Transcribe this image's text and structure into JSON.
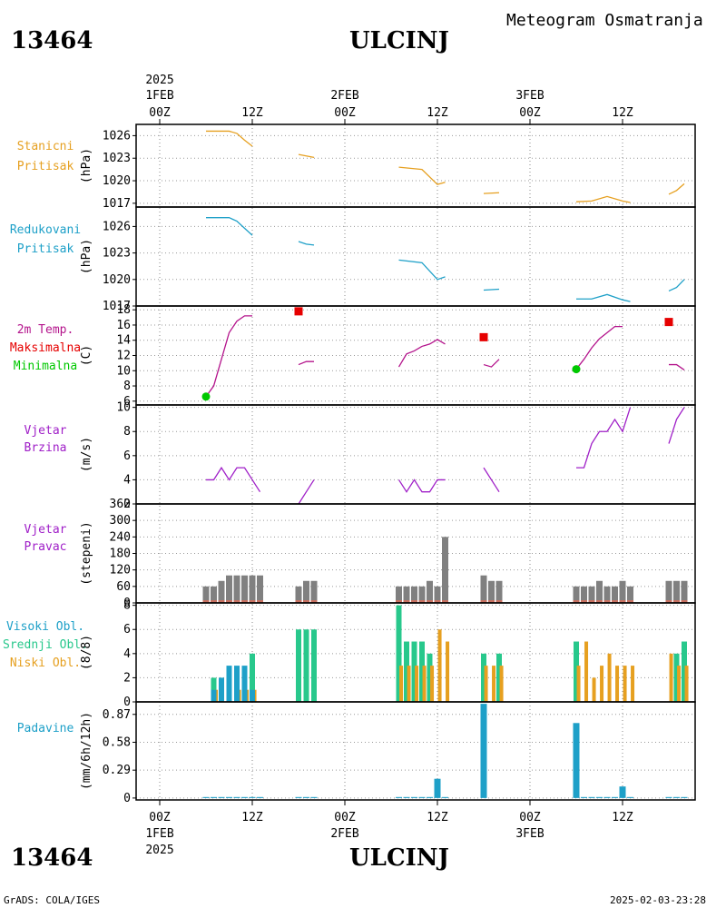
{
  "header": {
    "station_id": "13464",
    "station_name": "ULCINJ",
    "product": "Meteogram Osmatranja"
  },
  "footer": {
    "credit": "GrADS: COLA/IGES",
    "timestamp": "2025-02-03-23:28"
  },
  "time_axis": {
    "year": "2025",
    "ticks": [
      {
        "h": 0,
        "time": "00Z",
        "date": "1FEB"
      },
      {
        "h": 12,
        "time": "12Z",
        "date": ""
      },
      {
        "h": 24,
        "time": "00Z",
        "date": "2FEB"
      },
      {
        "h": 36,
        "time": "12Z",
        "date": ""
      },
      {
        "h": 48,
        "time": "00Z",
        "date": "3FEB"
      },
      {
        "h": 60,
        "time": "12Z",
        "date": ""
      }
    ]
  },
  "panels": {
    "stanicni": {
      "labels": [
        "Stanicni",
        "Pritisak"
      ],
      "unit": "(hPa)",
      "color": "#e6a020"
    },
    "redukovani": {
      "labels": [
        "Redukovani",
        "Pritisak"
      ],
      "unit": "(hPa)",
      "color": "#1ea0c8"
    },
    "temp": {
      "labels": [
        "2m Temp.",
        "Maksimalna",
        "Minimalna"
      ],
      "colors": [
        "#b4148c",
        "#e60000",
        "#00c800"
      ],
      "unit": "(C)"
    },
    "vjetar_brzina": {
      "labels": [
        "Vjetar",
        "Brzina"
      ],
      "unit": "(m/s)",
      "color": "#a020c8"
    },
    "vjetar_pravac": {
      "labels": [
        "Vjetar",
        "Pravac"
      ],
      "unit": "(stepeni)",
      "color": "#a020c8"
    },
    "oblaci": {
      "labels": [
        "Visoki Obl.",
        "Srednji Obl.",
        "Niski Obl."
      ],
      "colors": [
        "#1ea0c8",
        "#28c88c",
        "#e6a020"
      ],
      "unit": "(8/8)"
    },
    "padavine": {
      "labels": [
        "Padavine"
      ],
      "unit": "(mm/6h/12h)",
      "color": "#1ea0c8"
    }
  },
  "chart_data": [
    {
      "type": "line",
      "title": "Stanicni Pritisak",
      "ylabel": "(hPa)",
      "ylim": [
        1016.5,
        1027.5
      ],
      "yticks": [
        1017,
        1020,
        1023,
        1026
      ],
      "segments": [
        {
          "x": [
            6,
            9,
            10,
            11,
            12
          ],
          "y": [
            1026.6,
            1026.6,
            1026.3,
            1025.4,
            1024.6
          ]
        },
        {
          "x": [
            18,
            20
          ],
          "y": [
            1023.5,
            1023.1
          ]
        },
        {
          "x": [
            31,
            34,
            36,
            37
          ],
          "y": [
            1021.8,
            1021.5,
            1019.5,
            1019.8
          ]
        },
        {
          "x": [
            42,
            44
          ],
          "y": [
            1018.3,
            1018.4
          ]
        },
        {
          "x": [
            54,
            56,
            58,
            60,
            61
          ],
          "y": [
            1017.2,
            1017.3,
            1017.9,
            1017.3,
            1017.1
          ]
        },
        {
          "x": [
            66,
            67,
            68
          ],
          "y": [
            1018.2,
            1018.7,
            1019.6
          ]
        }
      ]
    },
    {
      "type": "line",
      "title": "Redukovani Pritisak",
      "ylabel": "(hPa)",
      "ylim": [
        1017,
        1028.2
      ],
      "yticks": [
        1017,
        1020,
        1023,
        1026
      ],
      "segments": [
        {
          "x": [
            6,
            9,
            10,
            11,
            12
          ],
          "y": [
            1027.0,
            1027.0,
            1026.6,
            1025.8,
            1025.0
          ]
        },
        {
          "x": [
            18,
            19,
            20
          ],
          "y": [
            1024.3,
            1024.0,
            1023.9
          ]
        },
        {
          "x": [
            31,
            34,
            36,
            37
          ],
          "y": [
            1022.2,
            1021.9,
            1020.0,
            1020.3
          ]
        },
        {
          "x": [
            42,
            44
          ],
          "y": [
            1018.8,
            1018.9
          ]
        },
        {
          "x": [
            54,
            56,
            58,
            60,
            61
          ],
          "y": [
            1017.8,
            1017.8,
            1018.3,
            1017.7,
            1017.5
          ]
        },
        {
          "x": [
            66,
            67,
            68
          ],
          "y": [
            1018.7,
            1019.1,
            1020.0
          ]
        }
      ]
    },
    {
      "type": "line",
      "title": "2m Temp.",
      "ylabel": "(C)",
      "ylim": [
        5.5,
        18.5
      ],
      "yticks": [
        6,
        8,
        10,
        12,
        14,
        16,
        18
      ],
      "series": [
        {
          "name": "2m Temp.",
          "segments": [
            {
              "x": [
                6,
                7,
                8,
                9,
                10,
                11,
                12
              ],
              "y": [
                6.6,
                8.0,
                11.5,
                15.0,
                16.5,
                17.2,
                17.2
              ]
            },
            {
              "x": [
                18,
                19,
                20
              ],
              "y": [
                10.8,
                11.2,
                11.2
              ]
            },
            {
              "x": [
                31,
                32,
                33,
                34,
                35,
                36,
                37
              ],
              "y": [
                10.5,
                12.2,
                12.6,
                13.2,
                13.5,
                14.1,
                13.5
              ]
            },
            {
              "x": [
                42,
                43,
                44
              ],
              "y": [
                10.8,
                10.5,
                11.5
              ]
            },
            {
              "x": [
                54,
                55,
                56,
                57,
                58,
                59,
                60
              ],
              "y": [
                10.2,
                11.5,
                13.0,
                14.2,
                15.0,
                15.8,
                15.8
              ]
            },
            {
              "x": [
                66,
                67,
                68
              ],
              "y": [
                10.8,
                10.8,
                10.1
              ]
            }
          ]
        },
        {
          "name": "Maksimalna",
          "points": [
            {
              "x": 18,
              "y": 17.8
            },
            {
              "x": 42,
              "y": 14.4
            },
            {
              "x": 66,
              "y": 16.4
            }
          ]
        },
        {
          "name": "Minimalna",
          "points": [
            {
              "x": 6,
              "y": 6.6
            },
            {
              "x": 54,
              "y": 10.2
            }
          ]
        }
      ]
    },
    {
      "type": "line",
      "title": "Vjetar Brzina",
      "ylabel": "(m/s)",
      "ylim": [
        2,
        10.2
      ],
      "yticks": [
        2,
        4,
        6,
        8,
        10
      ],
      "segments": [
        {
          "x": [
            6,
            7,
            8,
            9,
            10,
            11,
            12
          ],
          "y": [
            4,
            4,
            5,
            4,
            5,
            5,
            4
          ]
        },
        {
          "x": [
            12,
            13
          ],
          "y": [
            4,
            3
          ]
        },
        {
          "x": [
            18,
            19,
            20
          ],
          "y": [
            2,
            3,
            4
          ]
        },
        {
          "x": [
            31,
            32,
            33,
            34,
            35,
            36,
            37
          ],
          "y": [
            4,
            3,
            4,
            3,
            3,
            4,
            4
          ]
        },
        {
          "x": [
            42,
            43,
            44
          ],
          "y": [
            5,
            4,
            3
          ]
        },
        {
          "x": [
            54,
            55,
            56,
            57,
            58,
            59,
            60,
            61
          ],
          "y": [
            5,
            5,
            7,
            8,
            8,
            9,
            8,
            10
          ]
        },
        {
          "x": [
            66,
            67,
            68
          ],
          "y": [
            7,
            9,
            10
          ]
        }
      ]
    },
    {
      "type": "bar",
      "title": "Vjetar Pravac",
      "ylabel": "(stepeni)",
      "ylim": [
        0,
        360
      ],
      "yticks": [
        0,
        60,
        120,
        180,
        240,
        300,
        360
      ],
      "x": [
        6,
        7,
        8,
        9,
        10,
        11,
        12,
        13,
        18,
        19,
        20,
        31,
        32,
        33,
        34,
        35,
        36,
        37,
        42,
        43,
        44,
        54,
        55,
        56,
        57,
        58,
        59,
        60,
        61,
        66,
        67,
        68
      ],
      "values": [
        60,
        60,
        80,
        100,
        100,
        100,
        100,
        100,
        60,
        80,
        80,
        60,
        60,
        60,
        60,
        80,
        60,
        240,
        100,
        80,
        80,
        60,
        60,
        60,
        80,
        60,
        60,
        80,
        60,
        80,
        80,
        80
      ]
    },
    {
      "type": "bar",
      "title": "Oblaci",
      "ylabel": "(8/8)",
      "ylim": [
        0,
        8.2
      ],
      "yticks": [
        0,
        2,
        4,
        6,
        8
      ],
      "series": [
        {
          "name": "Visoki Obl.",
          "x": [
            7,
            8,
            9,
            10,
            11,
            12
          ],
          "values": [
            1,
            2,
            3,
            3,
            3,
            1
          ]
        },
        {
          "name": "Srednji Obl.",
          "x": [
            7,
            8,
            9,
            10,
            11,
            12,
            18,
            19,
            20,
            31,
            32,
            33,
            34,
            35,
            36,
            37,
            42,
            43,
            44,
            54,
            55,
            56,
            57,
            58,
            59,
            60,
            61,
            66,
            67,
            68
          ],
          "values": [
            2,
            2,
            0,
            0,
            0,
            4,
            6,
            6,
            6,
            8,
            5,
            5,
            5,
            4,
            0,
            0,
            4,
            0,
            4,
            5,
            0,
            0,
            0,
            0,
            0,
            0,
            0,
            0,
            4,
            5
          ]
        },
        {
          "name": "Niski Obl.",
          "x": [
            7,
            10,
            11,
            12,
            31,
            32,
            33,
            34,
            35,
            36,
            37,
            42,
            43,
            44,
            54,
            55,
            56,
            57,
            58,
            59,
            60,
            61,
            66,
            67,
            68
          ],
          "values": [
            1,
            1,
            1,
            1,
            3,
            3,
            3,
            3,
            3,
            6,
            5,
            3,
            3,
            3,
            3,
            5,
            2,
            3,
            4,
            3,
            3,
            3,
            4,
            3,
            3
          ]
        }
      ]
    },
    {
      "type": "bar",
      "title": "Padavine",
      "ylabel": "(mm/6h/12h)",
      "ylim": [
        -0.02,
        1.0
      ],
      "yticks": [
        0,
        0.29,
        0.58,
        0.87
      ],
      "x": [
        6,
        7,
        8,
        9,
        10,
        11,
        12,
        13,
        18,
        19,
        20,
        31,
        32,
        33,
        34,
        35,
        36,
        37,
        42,
        54,
        55,
        56,
        57,
        58,
        59,
        60,
        61,
        66,
        67,
        68
      ],
      "values": [
        0.01,
        0.01,
        0.01,
        0.01,
        0.01,
        0.01,
        0.01,
        0.01,
        0.01,
        0.01,
        0.01,
        0.01,
        0.01,
        0.01,
        0.01,
        0.01,
        0.2,
        0.01,
        0.98,
        0.78,
        0.01,
        0.01,
        0.01,
        0.01,
        0.01,
        0.12,
        0.01,
        0.01,
        0.01,
        0.01
      ]
    }
  ]
}
